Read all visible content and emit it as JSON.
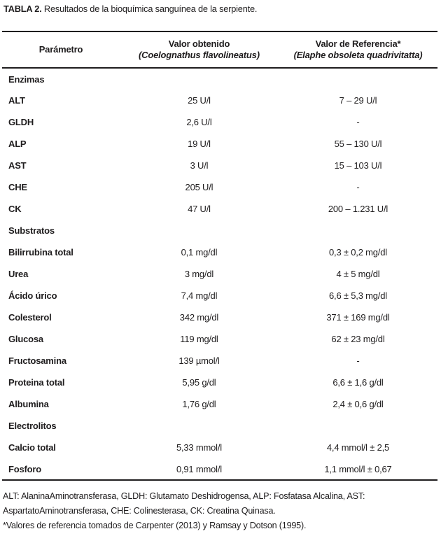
{
  "title": {
    "label": "TABLA 2.",
    "text": " Resultados de la bioquímica sanguínea de la serpiente."
  },
  "table": {
    "header": {
      "col1": "Parámetro",
      "col2_line1": "Valor obtenido",
      "col2_line2": "(Coelognathus flavolineatus)",
      "col3_line1": "Valor de Referencia*",
      "col3_line2": "(Elaphe obsoleta quadrivitatta)"
    },
    "rows": [
      {
        "type": "section",
        "label": "Enzimas",
        "value": "",
        "reference": ""
      },
      {
        "type": "data",
        "label": "ALT",
        "value": "25 U/l",
        "reference": "7 – 29 U/l"
      },
      {
        "type": "data",
        "label": "GLDH",
        "value": "2,6 U/l",
        "reference": "-"
      },
      {
        "type": "data",
        "label": "ALP",
        "value": "19 U/l",
        "reference": "55 – 130 U/l"
      },
      {
        "type": "data",
        "label": "AST",
        "value": "3 U/l",
        "reference": "15 – 103 U/l"
      },
      {
        "type": "data",
        "label": "CHE",
        "value": "205 U/l",
        "reference": "-"
      },
      {
        "type": "data",
        "label": "CK",
        "value": "47 U/l",
        "reference": "200 – 1.231 U/l"
      },
      {
        "type": "section",
        "label": "Substratos",
        "value": "",
        "reference": ""
      },
      {
        "type": "data",
        "label": "Bilirrubina total",
        "value": "0,1 mg/dl",
        "reference": "0,3 ± 0,2 mg/dl"
      },
      {
        "type": "data",
        "label": "Urea",
        "value": "3 mg/dl",
        "reference": "4 ± 5 mg/dl"
      },
      {
        "type": "data",
        "label": "Ácido úrico",
        "value": "7,4 mg/dl",
        "reference": "6,6 ± 5,3 mg/dl"
      },
      {
        "type": "data",
        "label": "Colesterol",
        "value": "342 mg/dl",
        "reference": "371 ± 169 mg/dl"
      },
      {
        "type": "data",
        "label": "Glucosa",
        "value": "119 mg/dl",
        "reference": "62 ± 23 mg/dl"
      },
      {
        "type": "data",
        "label": "Fructosamina",
        "value": "139 µmol/l",
        "reference": "-"
      },
      {
        "type": "data",
        "label": "Proteina total",
        "value": "5,95 g/dl",
        "reference": "6,6 ± 1,6 g/dl"
      },
      {
        "type": "data",
        "label": "Albumina",
        "value": "1,76 g/dl",
        "reference": "2,4 ± 0,6 g/dl"
      },
      {
        "type": "section",
        "label": "Electrolitos",
        "value": "",
        "reference": ""
      },
      {
        "type": "data",
        "label": "Calcio total",
        "value": "5,33 mmol/l",
        "reference": "4,4 mmol/l ± 2,5"
      },
      {
        "type": "data",
        "label": "Fosforo",
        "value": "0,91 mmol/l",
        "reference": "1,1 mmol/l ± 0,67"
      }
    ]
  },
  "footnotes": {
    "lines": [
      "ALT: AlaninaAminotransferasa, GLDH: Glutamato Deshidrogensa, ALP: Fosfatasa Alcalina, AST:",
      "AspartatoAminotransferasa, CHE: Colinesterasa, CK: Creatina Quinasa.",
      "*Valores de referencia tomados de Carpenter (2013) y Ramsay y Dotson (1995)."
    ]
  },
  "colors": {
    "text": "#1f1d1e",
    "rule": "#1f1d1e",
    "background": "#ffffff"
  }
}
